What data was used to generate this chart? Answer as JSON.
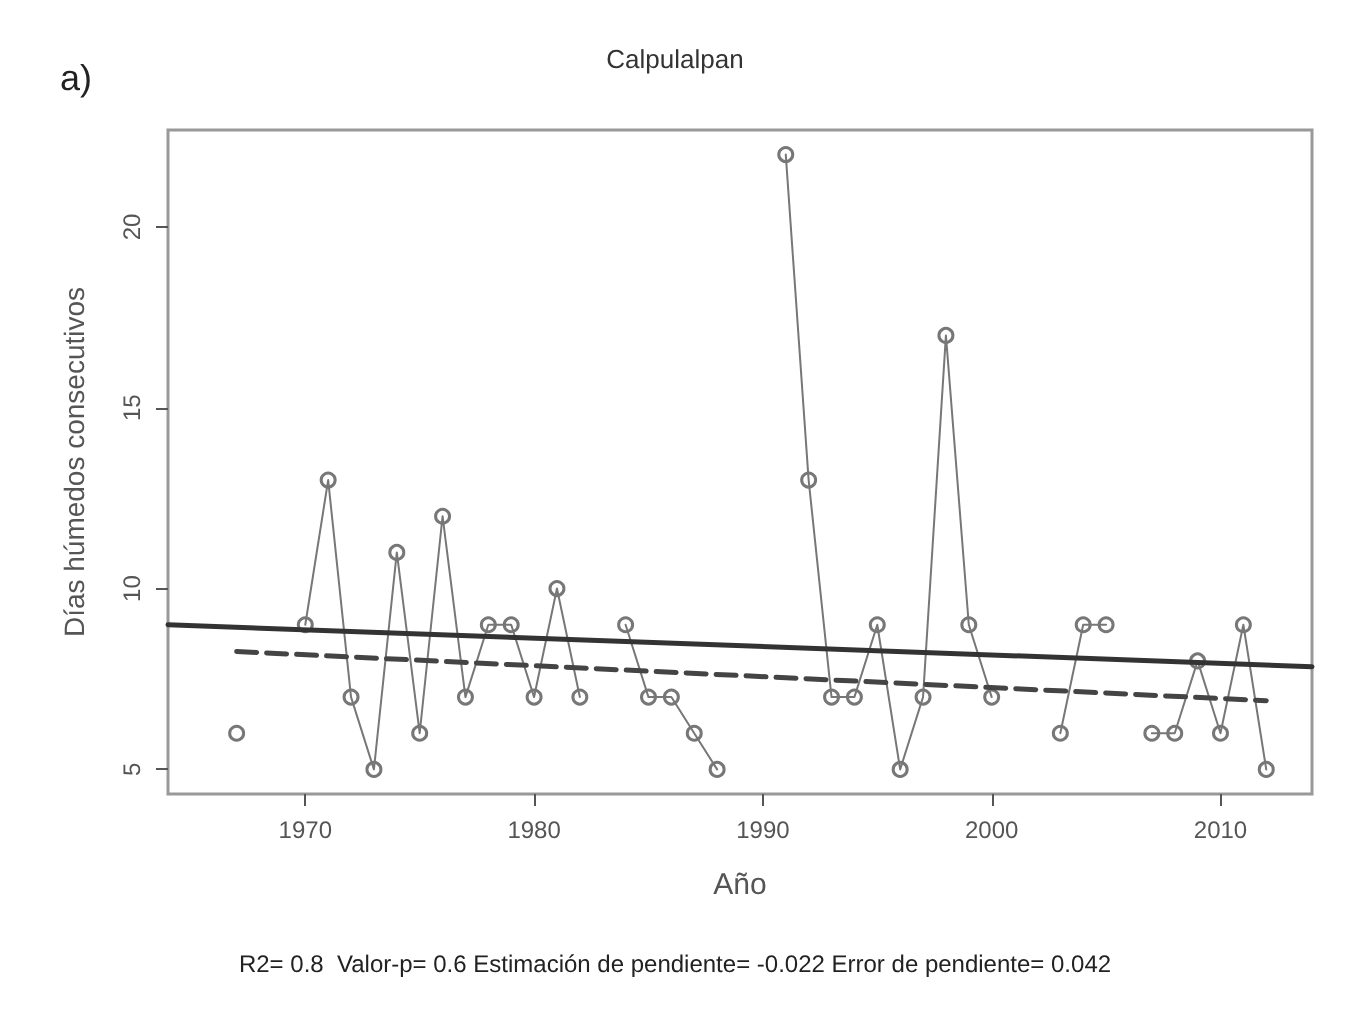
{
  "chart_data": {
    "type": "line",
    "title": "Calpulalpan",
    "xlabel": "Año",
    "ylabel": "Días húmedos consecutivos",
    "annotations": [
      "a)",
      "R2= 0.8  Valor-p= 0.6 Estimación de pendiente= -0.022 Error de pendiente= 0.042"
    ],
    "xlim": [
      1964,
      2014
    ],
    "xticks": [
      1970,
      1980,
      1990,
      2000,
      2010
    ],
    "ylim": [
      4.32,
      22.68
    ],
    "yticks": [
      5,
      10,
      15,
      20
    ],
    "grid": false,
    "marker": "circle",
    "line_style": "solid",
    "series": [
      {
        "color": "#777777",
        "x": [
          1967,
          1968,
          1969,
          1970,
          1971,
          1972,
          1973,
          1974,
          1975,
          1976,
          1977,
          1978,
          1979,
          1980,
          1981,
          1982,
          1983,
          1984,
          1985,
          1986,
          1987,
          1988,
          1989,
          1990,
          1991,
          1992,
          1993,
          1994,
          1995,
          1996,
          1997,
          1998,
          1999,
          2000,
          2001,
          2002,
          2003,
          2004,
          2005,
          2006,
          2007,
          2008,
          2009,
          2010,
          2011,
          2012
        ],
        "values": [
          6,
          null,
          null,
          9,
          13,
          7,
          5,
          11,
          6,
          12,
          7,
          9,
          9,
          7,
          10,
          7,
          null,
          9,
          7,
          7,
          6,
          5,
          null,
          null,
          22,
          13,
          7,
          7,
          9,
          5,
          7,
          17,
          9,
          7,
          null,
          null,
          6,
          9,
          9,
          null,
          6,
          6,
          8,
          6,
          9,
          5
        ]
      },
      {
        "type": "line",
        "color": "#333333",
        "marker": "none",
        "line_style": "solid",
        "x": [
          1964,
          2014
        ],
        "values": [
          9.0,
          7.84
        ]
      },
      {
        "type": "line",
        "color": "#444444",
        "marker": "none",
        "line_style": "dashed",
        "x": [
          1967,
          2012
        ],
        "values": [
          8.26,
          6.9
        ]
      }
    ]
  }
}
